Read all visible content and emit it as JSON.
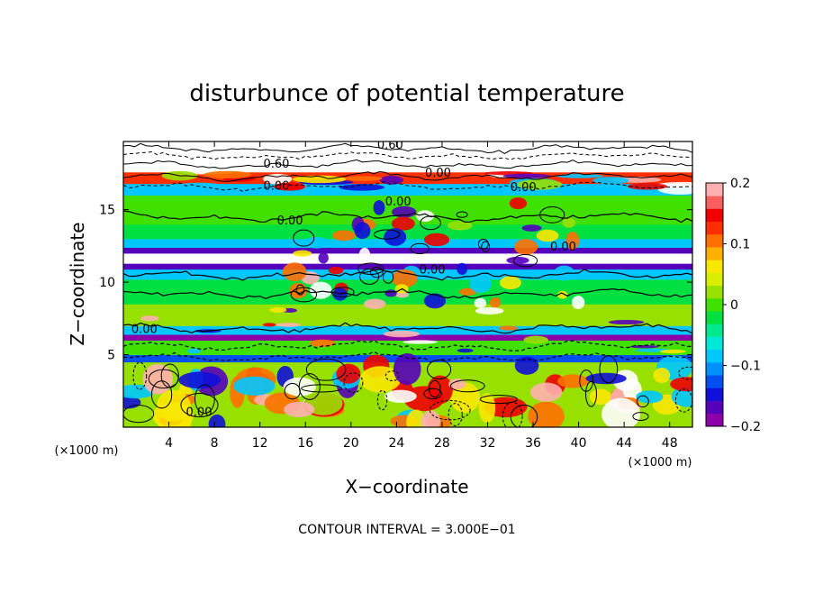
{
  "chart_data": {
    "type": "heatmap",
    "title": "disturbunce of potential temperature",
    "xlabel": "X−coordinate",
    "ylabel": "Z−coordinate",
    "x_unit_label": "(×1000 m)",
    "z_unit_label": "(×1000 m)",
    "xlim": [
      0,
      50
    ],
    "ylim": [
      0,
      19.7
    ],
    "x_ticks": [
      4,
      8,
      12,
      16,
      20,
      24,
      28,
      32,
      36,
      40,
      44,
      48
    ],
    "x_tick_labels": [
      "4",
      "8",
      "12",
      "16",
      "20",
      "24",
      "28",
      "32",
      "36",
      "40",
      "44",
      "48"
    ],
    "y_ticks": [
      5,
      10,
      15
    ],
    "y_tick_labels": [
      "5",
      "10",
      "15"
    ],
    "colorbar": {
      "min": -0.2,
      "max": 0.2,
      "ticks": [
        0.2,
        0.1,
        0,
        -0.1,
        -0.2
      ],
      "tick_labels": [
        "0.2",
        "0.1",
        "0",
        "−0.1",
        "−0.2"
      ],
      "colors": [
        "#8B00A8",
        "#5500BB",
        "#1010D8",
        "#0050F0",
        "#0090FF",
        "#00C8FF",
        "#00E8D8",
        "#00E890",
        "#00E040",
        "#40E000",
        "#98E000",
        "#D8F000",
        "#F8E800",
        "#FFB000",
        "#FF7000",
        "#FF3000",
        "#F00000",
        "#F86060",
        "#FFB0B0"
      ]
    },
    "bands": [
      {
        "z0": 0.0,
        "z1": 4.5,
        "value": 0.02
      },
      {
        "z0": 4.5,
        "z1": 5.0,
        "value": -0.12
      },
      {
        "z0": 5.0,
        "z1": 6.0,
        "value": 0.0
      },
      {
        "z0": 6.0,
        "z1": 6.4,
        "value": -0.18
      },
      {
        "z0": 6.4,
        "z1": 7.0,
        "value": -0.08
      },
      {
        "z0": 7.0,
        "z1": 8.5,
        "value": 0.02
      },
      {
        "z0": 8.5,
        "z1": 10.2,
        "value": -0.03
      },
      {
        "z0": 10.2,
        "z1": 10.9,
        "value": -0.08
      },
      {
        "z0": 10.9,
        "z1": 11.3,
        "value": -0.17
      },
      {
        "z0": 11.3,
        "z1": 12.0,
        "value": 0.3
      },
      {
        "z0": 12.0,
        "z1": 12.4,
        "value": -0.17
      },
      {
        "z0": 12.4,
        "z1": 13.0,
        "value": -0.09
      },
      {
        "z0": 13.0,
        "z1": 14.0,
        "value": -0.03
      },
      {
        "z0": 14.0,
        "z1": 16.0,
        "value": 0.01
      },
      {
        "z0": 16.0,
        "z1": 16.8,
        "value": -0.08
      },
      {
        "z0": 16.8,
        "z1": 17.6,
        "value": 0.12
      },
      {
        "z0": 17.6,
        "z1": 19.7,
        "value": 0.3
      }
    ],
    "contour_labels": [
      {
        "text": "0.60",
        "x": 22.3,
        "z": 19.5
      },
      {
        "text": "0.60",
        "x": 12.3,
        "z": 18.2
      },
      {
        "text": "0.00",
        "x": 12.3,
        "z": 16.7
      },
      {
        "text": "0.00",
        "x": 26.5,
        "z": 17.6
      },
      {
        "text": "0.00",
        "x": 34.0,
        "z": 16.6
      },
      {
        "text": "0.00",
        "x": 23.0,
        "z": 15.6
      },
      {
        "text": "0.00",
        "x": 13.5,
        "z": 14.3
      },
      {
        "text": "0.00",
        "x": 37.5,
        "z": 12.5
      },
      {
        "text": "0.00",
        "x": 26.0,
        "z": 10.9
      },
      {
        "text": "0.00",
        "x": 0.7,
        "z": 6.8
      },
      {
        "text": "0.00",
        "x": 5.5,
        "z": 1.1
      }
    ],
    "grid": false,
    "legend": "colorbar-right"
  },
  "footer": {
    "contour_interval": "CONTOUR INTERVAL = 3.000E−01"
  }
}
